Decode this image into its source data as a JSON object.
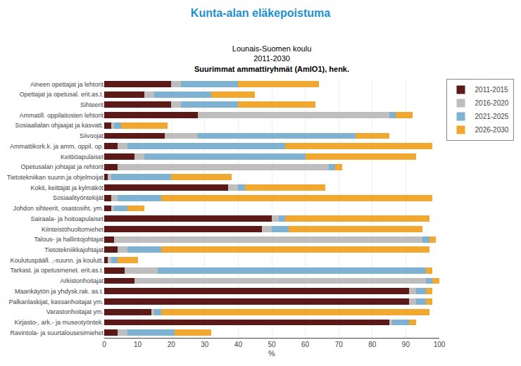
{
  "chart_data": {
    "type": "bar",
    "title": "Kunta-alan eläkepoistuma",
    "subtitle": [
      "Lounais-Suomen koulu",
      "2011-2030",
      "Suurimmat ammattiryhmät (AmlO1), henk."
    ],
    "xlabel": "%",
    "orientation": "horizontal",
    "stacked": true,
    "grid": true,
    "legend": "right",
    "categories": [
      "Aineen opettajat ja lehtorit",
      "Opettajat ja opetusal. erit.as.t.",
      "Sihteerit",
      "Ammatill. oppilaitosten lehtorit",
      "Sosiaalialan ohjaajat ja kasvatt.",
      "Siivoojat",
      "Ammattikork.k. ja amm. oppil. op.",
      "Keittiöapulaiset",
      "Opetusalan johtajat ja rehtorit",
      "Tietotekniikan suunn.ja ohjelmoijat",
      "Kokit, keittäjät ja kylmäköt",
      "Sosiaalityöntekijät",
      "Johdon sihteerit, osastosiht. ym.",
      "Sairaala- ja hoitoapulaiset",
      "Kiinteistöhuoltomiehet",
      "Talous- ja hallintojohtajat",
      "Tietotekniikkajohtajat",
      "Koulutuspääll. ,-suunn. ja koulutt.",
      "Tarkast. ja opetusmenet. erit.as.t.",
      "Arkistonhoitajat",
      "Maankäytön ja yhdysk.rak. as.t.",
      "Palkanlaskijat, kassanhoitajat ym.",
      "Varastonhoitajat ym.",
      "Kirjasto-, ark.- ja museotyöntek.",
      "Ravintola- ja suurtalousesimiehet"
    ],
    "series": [
      {
        "name": "2011-2015",
        "color": "#5B1A18",
        "values": [
          20,
          12,
          20,
          28,
          2,
          18,
          4,
          9,
          4,
          1,
          37,
          2,
          2,
          50,
          47,
          3,
          4,
          1,
          6,
          9,
          91,
          91,
          14,
          85,
          4
        ]
      },
      {
        "name": "2016-2020",
        "color": "#BEBEBE",
        "values": [
          3,
          3,
          3,
          57,
          1,
          10,
          3,
          3,
          63,
          1,
          3,
          2,
          1,
          2,
          3,
          92,
          3,
          1,
          10,
          87,
          2,
          2,
          1,
          1,
          3
        ]
      },
      {
        "name": "2021-2025",
        "color": "#7FB2D0",
        "values": [
          17,
          17,
          17,
          2,
          2,
          47,
          47,
          48,
          2,
          18,
          2,
          13,
          4,
          2,
          5,
          2,
          10,
          2,
          80,
          2,
          3,
          3,
          2,
          5,
          14
        ]
      },
      {
        "name": "2026-2030",
        "color": "#F0A830",
        "values": [
          24,
          13,
          23,
          5,
          14,
          10,
          44,
          33,
          2,
          18,
          24,
          81,
          5,
          43,
          40,
          2,
          80,
          6,
          2,
          2,
          2,
          2,
          80,
          2,
          11
        ]
      }
    ],
    "xlim": [
      0,
      100
    ],
    "xticks": [
      0,
      10,
      20,
      30,
      40,
      50,
      60,
      70,
      80,
      90,
      100
    ]
  }
}
